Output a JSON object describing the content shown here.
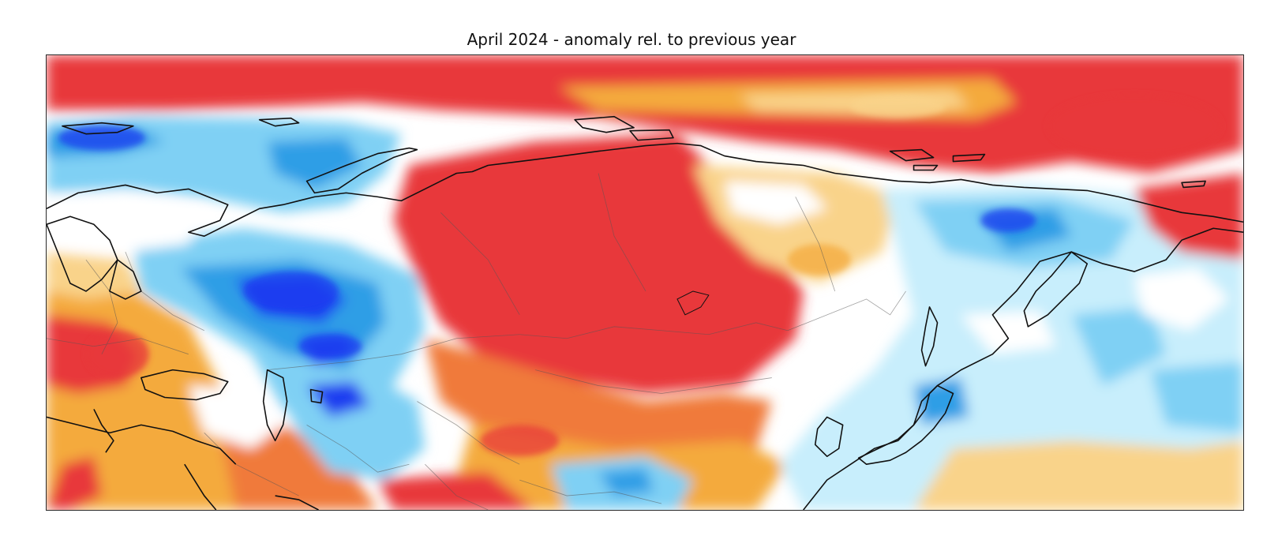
{
  "figure": {
    "title": "April 2024 - anomaly rel. to previous year"
  },
  "map": {
    "variable": "temperature anomaly",
    "projection": "equirectangular",
    "colors": {
      "strong_warm": "#e8383a",
      "warm": "#f07a3a",
      "moderate_warm": "#f4aa3e",
      "weak_warm": "#f9d38a",
      "near_zero": "#ffffff",
      "weak_cold": "#c8eefc",
      "moderate_cold": "#7fd0f4",
      "cold": "#2f9ee6",
      "strong_cold": "#1b3ef0",
      "coastline": "#111111",
      "border": "#444444"
    }
  }
}
